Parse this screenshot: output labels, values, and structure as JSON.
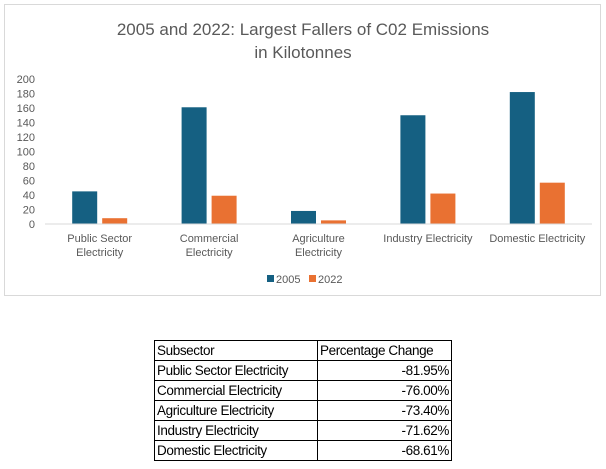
{
  "chart_data": {
    "type": "bar",
    "title_lines": [
      "2005 and 2022: Largest Fallers of C02 Emissions",
      "in Kilotonnes"
    ],
    "categories": [
      [
        "Public Sector",
        "Electricity"
      ],
      [
        "Commercial",
        "Electricity"
      ],
      [
        "Agriculture",
        "Electricity"
      ],
      [
        "Industry Electricity"
      ],
      [
        "Domestic Electricity"
      ]
    ],
    "series": [
      {
        "name": "2005",
        "color": "#156082",
        "values": [
          45,
          161,
          18,
          150,
          182
        ]
      },
      {
        "name": "2022",
        "color": "#E97132",
        "values": [
          8,
          39,
          5,
          42,
          57
        ]
      }
    ],
    "ylim": [
      0,
      200
    ],
    "yticks": [
      0,
      20,
      40,
      60,
      80,
      100,
      120,
      140,
      160,
      180,
      200
    ],
    "grid": false,
    "legend_position": "bottom"
  },
  "table": {
    "headers": [
      "Subsector",
      "Percentage Change"
    ],
    "rows": [
      {
        "subsector": "Public Sector Electricity",
        "change": "-81.95%"
      },
      {
        "subsector": "Commercial Electricity",
        "change": "-76.00%"
      },
      {
        "subsector": "Agriculture Electricity",
        "change": "-73.40%"
      },
      {
        "subsector": "Industry Electricity",
        "change": "-71.62%"
      },
      {
        "subsector": "Domestic Electricity",
        "change": "-68.61%"
      }
    ]
  }
}
